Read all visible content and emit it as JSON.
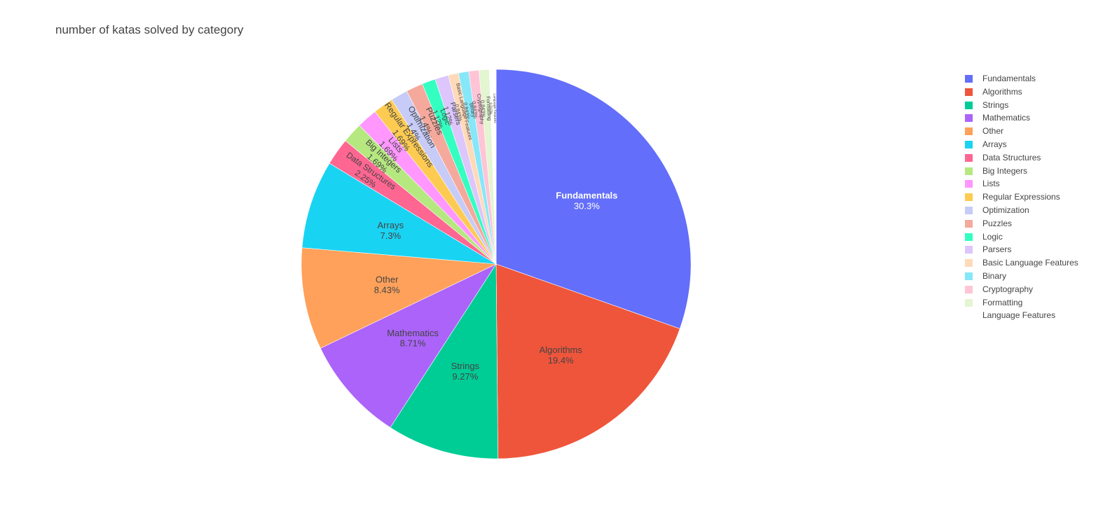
{
  "chart_data": {
    "type": "pie",
    "title": "number of katas solved by category",
    "legend_position": "right",
    "slices": [
      {
        "label": "Fundamentals",
        "percent_label": "30.3%",
        "value": 30.3,
        "color": "#636efa",
        "label_color": "#ffffff"
      },
      {
        "label": "Algorithms",
        "percent_label": "19.4%",
        "value": 19.4,
        "color": "#ef553b",
        "label_color": "#444444"
      },
      {
        "label": "Strings",
        "percent_label": "9.27%",
        "value": 9.27,
        "color": "#00cc96",
        "label_color": "#444444"
      },
      {
        "label": "Mathematics",
        "percent_label": "8.71%",
        "value": 8.71,
        "color": "#ab63fa",
        "label_color": "#444444"
      },
      {
        "label": "Other",
        "percent_label": "8.43%",
        "value": 8.43,
        "color": "#ffa15a",
        "label_color": "#444444"
      },
      {
        "label": "Arrays",
        "percent_label": "7.3%",
        "value": 7.3,
        "color": "#19d3f3",
        "label_color": "#444444"
      },
      {
        "label": "Data Structures",
        "percent_label": "2.25%",
        "value": 2.25,
        "color": "#ff6692",
        "label_color": "#444444"
      },
      {
        "label": "Big Integers",
        "percent_label": "1.69%",
        "value": 1.69,
        "color": "#b6e880",
        "label_color": "#444444"
      },
      {
        "label": "Lists",
        "percent_label": "1.69%",
        "value": 1.69,
        "color": "#ff97ff",
        "label_color": "#444444"
      },
      {
        "label": "Regular Expressions",
        "percent_label": "1.69%",
        "value": 1.69,
        "color": "#fecb52",
        "label_color": "#444444"
      },
      {
        "label": "Optimization",
        "percent_label": "1.4%",
        "value": 1.4,
        "color": "#c6cbf7",
        "label_color": "#444444"
      },
      {
        "label": "Puzzles",
        "percent_label": "1.4%",
        "value": 1.4,
        "color": "#f5a99c",
        "label_color": "#444444"
      },
      {
        "label": "Logic",
        "percent_label": "1.12%",
        "value": 1.12,
        "color": "#33ffc1",
        "label_color": "#444444"
      },
      {
        "label": "Parsers",
        "percent_label": "1.12%",
        "value": 1.12,
        "color": "#dcc6fb",
        "label_color": "#444444"
      },
      {
        "label": "Basic Language Features",
        "percent_label": "0.843%",
        "value": 0.843,
        "color": "#ffdab8",
        "label_color": "#444444"
      },
      {
        "label": "Binary",
        "percent_label": "0.843%",
        "value": 0.843,
        "color": "#86e7f9",
        "label_color": "#444444"
      },
      {
        "label": "Cryptography",
        "percent_label": "0.843%",
        "value": 0.843,
        "color": "#ffc4d6",
        "label_color": "#444444"
      },
      {
        "label": "Formatting",
        "percent_label": "0.843%",
        "value": 0.843,
        "color": "#e4f5d1",
        "label_color": "#444444"
      },
      {
        "label": "Language Features",
        "percent_label": "0.562%",
        "value": 0.562,
        "color": "#ffffff",
        "label_color": "#444444"
      }
    ]
  }
}
